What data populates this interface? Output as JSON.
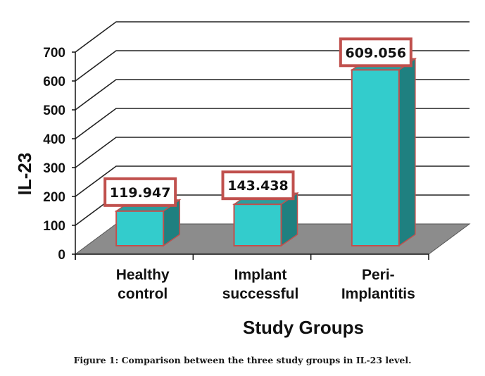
{
  "chart_data": {
    "type": "bar",
    "style": "3d-column",
    "title": "",
    "xlabel": "Study Groups",
    "ylabel": "IL-23",
    "categories": [
      [
        "Healthy",
        "control"
      ],
      [
        "Implant",
        "successful"
      ],
      [
        "Peri-",
        "Implantitis"
      ]
    ],
    "values": [
      119.947,
      143.438,
      609.056
    ],
    "data_labels": [
      "119.947",
      "143.438",
      "609.056"
    ],
    "ylim": [
      0,
      700
    ],
    "yticks": [
      0,
      100,
      200,
      300,
      400,
      500,
      600,
      700
    ],
    "grid": true,
    "legend": "none"
  },
  "colors": {
    "bar_front": "#33cccc",
    "bar_side": "#1f8080",
    "bar_top": "#2a9e9e",
    "bar_border": "#c0504d",
    "floor": "#8c8c8c",
    "label_border": "#c0504d"
  },
  "caption": "Figure 1: Comparison between the three study groups in IL-23 level."
}
